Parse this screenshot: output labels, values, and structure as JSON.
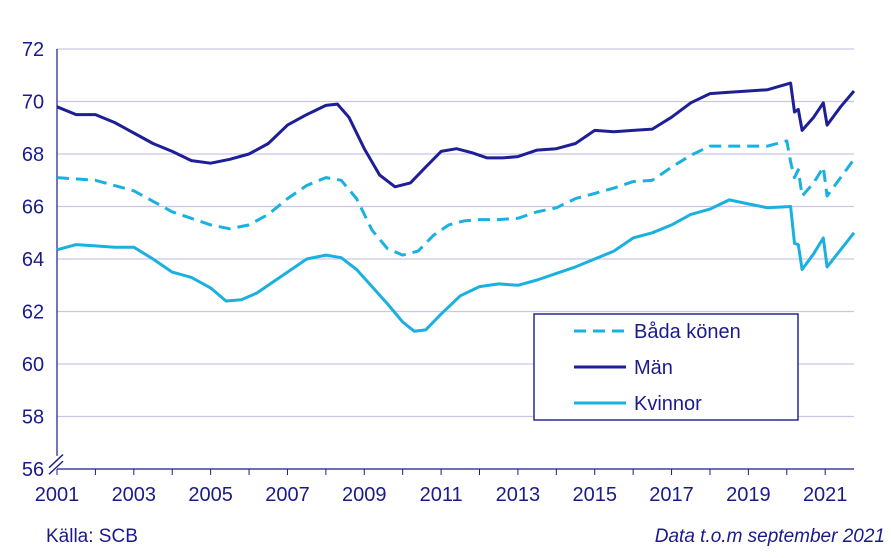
{
  "chart_data": {
    "type": "line",
    "title": "",
    "xlabel": "",
    "ylabel": "",
    "ylim": [
      56,
      72
    ],
    "xlim": [
      2001,
      2021.75
    ],
    "y_ticks": [
      56,
      58,
      60,
      62,
      64,
      66,
      68,
      70,
      72
    ],
    "x_ticks": [
      2001,
      2003,
      2005,
      2007,
      2009,
      2011,
      2013,
      2015,
      2017,
      2019,
      2021
    ],
    "grid": "horizontal",
    "y_axis_break": true,
    "legend_position": "bottom-right",
    "series": [
      {
        "name": "Båda könen",
        "color": "#1ab0e0",
        "style": "dashed",
        "points": [
          [
            2001,
            67.1
          ],
          [
            2002,
            67.0
          ],
          [
            2003,
            66.6
          ],
          [
            2004,
            65.8
          ],
          [
            2005,
            65.3
          ],
          [
            2005.5,
            65.15
          ],
          [
            2006,
            65.3
          ],
          [
            2006.5,
            65.7
          ],
          [
            2007,
            66.3
          ],
          [
            2007.5,
            66.8
          ],
          [
            2008,
            67.1
          ],
          [
            2008.4,
            67.0
          ],
          [
            2008.8,
            66.3
          ],
          [
            2009.2,
            65.1
          ],
          [
            2009.6,
            64.4
          ],
          [
            2010,
            64.15
          ],
          [
            2010.4,
            64.3
          ],
          [
            2010.8,
            64.9
          ],
          [
            2011.2,
            65.3
          ],
          [
            2011.6,
            65.45
          ],
          [
            2012,
            65.5
          ],
          [
            2012.5,
            65.5
          ],
          [
            2013,
            65.55
          ],
          [
            2013.5,
            65.8
          ],
          [
            2014,
            65.95
          ],
          [
            2014.5,
            66.3
          ],
          [
            2015,
            66.5
          ],
          [
            2015.5,
            66.7
          ],
          [
            2016,
            66.95
          ],
          [
            2016.5,
            67.0
          ],
          [
            2017,
            67.5
          ],
          [
            2017.5,
            67.95
          ],
          [
            2018,
            68.3
          ],
          [
            2018.5,
            68.3
          ],
          [
            2019,
            68.3
          ],
          [
            2019.5,
            68.3
          ],
          [
            2020,
            68.5
          ],
          [
            2020.1,
            67.7
          ],
          [
            2020.2,
            67.1
          ],
          [
            2020.3,
            67.4
          ],
          [
            2020.4,
            66.4
          ],
          [
            2020.7,
            66.9
          ],
          [
            2020.95,
            67.5
          ],
          [
            2021.05,
            66.4
          ],
          [
            2021.4,
            67.1
          ],
          [
            2021.75,
            67.8
          ]
        ]
      },
      {
        "name": "Män",
        "color": "#1e1e96",
        "style": "solid",
        "points": [
          [
            2001,
            69.8
          ],
          [
            2001.5,
            69.5
          ],
          [
            2002,
            69.5
          ],
          [
            2002.5,
            69.2
          ],
          [
            2003,
            68.8
          ],
          [
            2003.5,
            68.4
          ],
          [
            2004,
            68.1
          ],
          [
            2004.5,
            67.75
          ],
          [
            2005,
            67.65
          ],
          [
            2005.5,
            67.8
          ],
          [
            2006,
            68.0
          ],
          [
            2006.5,
            68.4
          ],
          [
            2007,
            69.1
          ],
          [
            2007.5,
            69.5
          ],
          [
            2008,
            69.85
          ],
          [
            2008.3,
            69.9
          ],
          [
            2008.6,
            69.4
          ],
          [
            2009,
            68.2
          ],
          [
            2009.4,
            67.2
          ],
          [
            2009.8,
            66.75
          ],
          [
            2010.2,
            66.9
          ],
          [
            2010.6,
            67.5
          ],
          [
            2011,
            68.1
          ],
          [
            2011.4,
            68.2
          ],
          [
            2011.8,
            68.05
          ],
          [
            2012.2,
            67.85
          ],
          [
            2012.6,
            67.85
          ],
          [
            2013,
            67.9
          ],
          [
            2013.5,
            68.15
          ],
          [
            2014,
            68.2
          ],
          [
            2014.5,
            68.4
          ],
          [
            2015,
            68.9
          ],
          [
            2015.5,
            68.85
          ],
          [
            2016,
            68.9
          ],
          [
            2016.5,
            68.95
          ],
          [
            2017,
            69.4
          ],
          [
            2017.5,
            69.95
          ],
          [
            2018,
            70.3
          ],
          [
            2018.5,
            70.35
          ],
          [
            2019,
            70.4
          ],
          [
            2019.5,
            70.45
          ],
          [
            2020.1,
            70.7
          ],
          [
            2020.2,
            69.6
          ],
          [
            2020.3,
            69.7
          ],
          [
            2020.4,
            68.9
          ],
          [
            2020.7,
            69.4
          ],
          [
            2020.95,
            69.95
          ],
          [
            2021.05,
            69.1
          ],
          [
            2021.4,
            69.8
          ],
          [
            2021.75,
            70.4
          ]
        ]
      },
      {
        "name": "Kvinnor",
        "color": "#1ab0e0",
        "style": "solid",
        "points": [
          [
            2001,
            64.35
          ],
          [
            2001.5,
            64.55
          ],
          [
            2002,
            64.5
          ],
          [
            2002.5,
            64.45
          ],
          [
            2003,
            64.45
          ],
          [
            2003.5,
            64.0
          ],
          [
            2004,
            63.5
          ],
          [
            2004.5,
            63.3
          ],
          [
            2005,
            62.9
          ],
          [
            2005.4,
            62.4
          ],
          [
            2005.8,
            62.45
          ],
          [
            2006.2,
            62.7
          ],
          [
            2006.6,
            63.1
          ],
          [
            2007,
            63.5
          ],
          [
            2007.5,
            64.0
          ],
          [
            2008,
            64.15
          ],
          [
            2008.4,
            64.05
          ],
          [
            2008.8,
            63.6
          ],
          [
            2009.2,
            62.95
          ],
          [
            2009.6,
            62.3
          ],
          [
            2010,
            61.6
          ],
          [
            2010.3,
            61.25
          ],
          [
            2010.6,
            61.3
          ],
          [
            2011,
            61.9
          ],
          [
            2011.5,
            62.6
          ],
          [
            2012,
            62.95
          ],
          [
            2012.5,
            63.05
          ],
          [
            2013,
            63.0
          ],
          [
            2013.5,
            63.2
          ],
          [
            2014,
            63.45
          ],
          [
            2014.5,
            63.7
          ],
          [
            2015,
            64.0
          ],
          [
            2015.5,
            64.3
          ],
          [
            2016,
            64.8
          ],
          [
            2016.5,
            65.0
          ],
          [
            2017,
            65.3
          ],
          [
            2017.5,
            65.7
          ],
          [
            2018,
            65.9
          ],
          [
            2018.5,
            66.25
          ],
          [
            2019,
            66.1
          ],
          [
            2019.5,
            65.95
          ],
          [
            2020.1,
            66.0
          ],
          [
            2020.2,
            64.6
          ],
          [
            2020.3,
            64.55
          ],
          [
            2020.4,
            63.6
          ],
          [
            2020.7,
            64.2
          ],
          [
            2020.95,
            64.8
          ],
          [
            2021.05,
            63.7
          ],
          [
            2021.4,
            64.35
          ],
          [
            2021.75,
            65.0
          ]
        ]
      }
    ]
  },
  "footer": {
    "source": "Källa: SCB",
    "note": "Data t.o.m september 2021"
  }
}
